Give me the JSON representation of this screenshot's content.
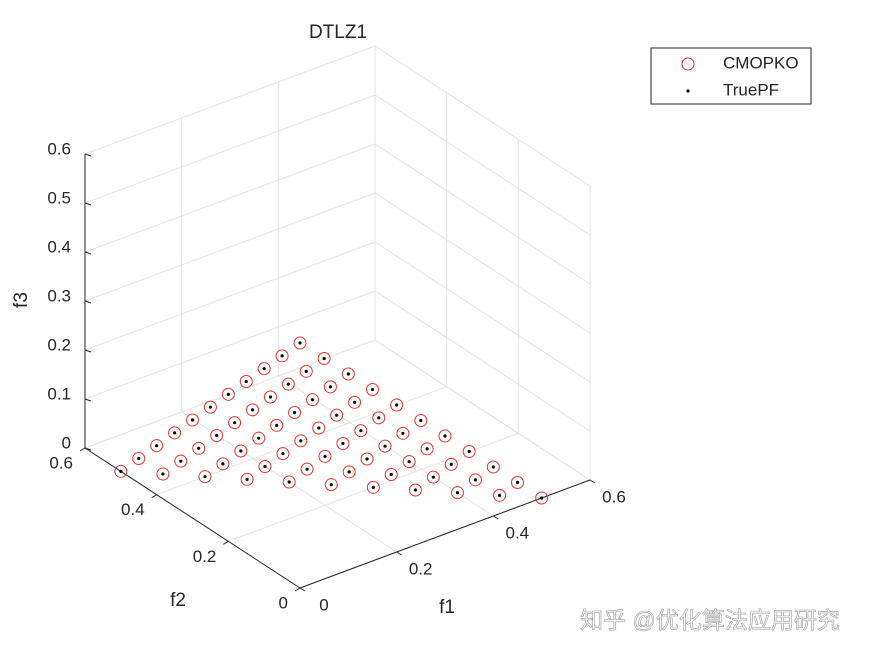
{
  "chart_data": {
    "type": "scatter3d",
    "title": "DTLZ1",
    "xlabel": "f1",
    "ylabel": "f2",
    "zlabel": "f3",
    "xlim": [
      0,
      0.6
    ],
    "ylim": [
      0,
      0.6
    ],
    "zlim": [
      0,
      0.6
    ],
    "xticks": [
      0,
      0.2,
      0.4,
      0.6
    ],
    "yticks": [
      0,
      0.2,
      0.4,
      0.6
    ],
    "zticks": [
      0,
      0.1,
      0.2,
      0.3,
      0.4,
      0.5,
      0.6
    ],
    "grid": true,
    "legend": "outside-top-right",
    "series": [
      {
        "name": "CMOPKO",
        "color": "#e8322a",
        "marker": "o",
        "x": [
          0,
          0,
          0,
          0,
          0,
          0,
          0,
          0,
          0,
          0,
          0,
          0.05,
          0.05,
          0.05,
          0.05,
          0.05,
          0.05,
          0.05,
          0.05,
          0.05,
          0.05,
          0.1,
          0.1,
          0.1,
          0.1,
          0.1,
          0.1,
          0.1,
          0.1,
          0.1,
          0.15,
          0.15,
          0.15,
          0.15,
          0.15,
          0.15,
          0.15,
          0.15,
          0.2,
          0.2,
          0.2,
          0.2,
          0.2,
          0.2,
          0.2,
          0.25,
          0.25,
          0.25,
          0.25,
          0.25,
          0.25,
          0.3,
          0.3,
          0.3,
          0.3,
          0.3,
          0.35,
          0.35,
          0.35,
          0.35,
          0.4,
          0.4,
          0.4,
          0.45,
          0.45,
          0.5
        ],
        "y": [
          0,
          0.05,
          0.1,
          0.15,
          0.2,
          0.25,
          0.3,
          0.35,
          0.4,
          0.45,
          0.5,
          0,
          0.05,
          0.1,
          0.15,
          0.2,
          0.25,
          0.3,
          0.35,
          0.4,
          0.45,
          0,
          0.05,
          0.1,
          0.15,
          0.2,
          0.25,
          0.3,
          0.35,
          0.4,
          0,
          0.05,
          0.1,
          0.15,
          0.2,
          0.25,
          0.3,
          0.35,
          0,
          0.05,
          0.1,
          0.15,
          0.2,
          0.25,
          0.3,
          0,
          0.05,
          0.1,
          0.15,
          0.2,
          0.25,
          0,
          0.05,
          0.1,
          0.15,
          0.2,
          0,
          0.05,
          0.1,
          0.15,
          0,
          0.05,
          0.1,
          0,
          0.05,
          0
        ],
        "z": [
          0.5,
          0.45,
          0.4,
          0.35,
          0.3,
          0.25,
          0.2,
          0.15,
          0.1,
          0.05,
          0,
          0.45,
          0.4,
          0.35,
          0.3,
          0.25,
          0.2,
          0.15,
          0.1,
          0.05,
          0,
          0.4,
          0.35,
          0.3,
          0.25,
          0.2,
          0.15,
          0.1,
          0.05,
          0,
          0.35,
          0.3,
          0.25,
          0.2,
          0.15,
          0.1,
          0.05,
          0,
          0.3,
          0.25,
          0.2,
          0.15,
          0.1,
          0.05,
          0,
          0.25,
          0.2,
          0.15,
          0.1,
          0.05,
          0,
          0.2,
          0.15,
          0.1,
          0.05,
          0,
          0.15,
          0.1,
          0.05,
          0,
          0.1,
          0.05,
          0,
          0.05,
          0,
          0
        ]
      },
      {
        "name": "TruePF",
        "color": "#000000",
        "marker": ".",
        "x": [
          0,
          0,
          0,
          0,
          0,
          0,
          0,
          0,
          0,
          0,
          0,
          0.05,
          0.05,
          0.05,
          0.05,
          0.05,
          0.05,
          0.05,
          0.05,
          0.05,
          0.05,
          0.1,
          0.1,
          0.1,
          0.1,
          0.1,
          0.1,
          0.1,
          0.1,
          0.1,
          0.15,
          0.15,
          0.15,
          0.15,
          0.15,
          0.15,
          0.15,
          0.15,
          0.2,
          0.2,
          0.2,
          0.2,
          0.2,
          0.2,
          0.2,
          0.25,
          0.25,
          0.25,
          0.25,
          0.25,
          0.25,
          0.3,
          0.3,
          0.3,
          0.3,
          0.3,
          0.35,
          0.35,
          0.35,
          0.35,
          0.4,
          0.4,
          0.4,
          0.45,
          0.45,
          0.5
        ],
        "y": [
          0,
          0.05,
          0.1,
          0.15,
          0.2,
          0.25,
          0.3,
          0.35,
          0.4,
          0.45,
          0.5,
          0,
          0.05,
          0.1,
          0.15,
          0.2,
          0.25,
          0.3,
          0.35,
          0.4,
          0.45,
          0,
          0.05,
          0.1,
          0.15,
          0.2,
          0.25,
          0.3,
          0.35,
          0.4,
          0,
          0.05,
          0.1,
          0.15,
          0.2,
          0.25,
          0.3,
          0.35,
          0,
          0.05,
          0.1,
          0.15,
          0.2,
          0.25,
          0.3,
          0,
          0.05,
          0.1,
          0.15,
          0.2,
          0.25,
          0,
          0.05,
          0.1,
          0.15,
          0.2,
          0,
          0.05,
          0.1,
          0.15,
          0,
          0.05,
          0.1,
          0,
          0.05,
          0
        ],
        "z": [
          0.5,
          0.45,
          0.4,
          0.35,
          0.3,
          0.25,
          0.2,
          0.15,
          0.1,
          0.05,
          0,
          0.45,
          0.4,
          0.35,
          0.3,
          0.25,
          0.2,
          0.15,
          0.1,
          0.05,
          0,
          0.4,
          0.35,
          0.3,
          0.25,
          0.2,
          0.15,
          0.1,
          0.05,
          0,
          0.35,
          0.3,
          0.25,
          0.2,
          0.15,
          0.1,
          0.05,
          0,
          0.3,
          0.25,
          0.2,
          0.15,
          0.1,
          0.05,
          0,
          0.25,
          0.2,
          0.15,
          0.1,
          0.05,
          0,
          0.2,
          0.15,
          0.1,
          0.05,
          0,
          0.15,
          0.1,
          0.05,
          0,
          0.1,
          0.05,
          0,
          0.05,
          0,
          0
        ]
      }
    ],
    "watermark": "知乎 @优化算法应用研究"
  }
}
